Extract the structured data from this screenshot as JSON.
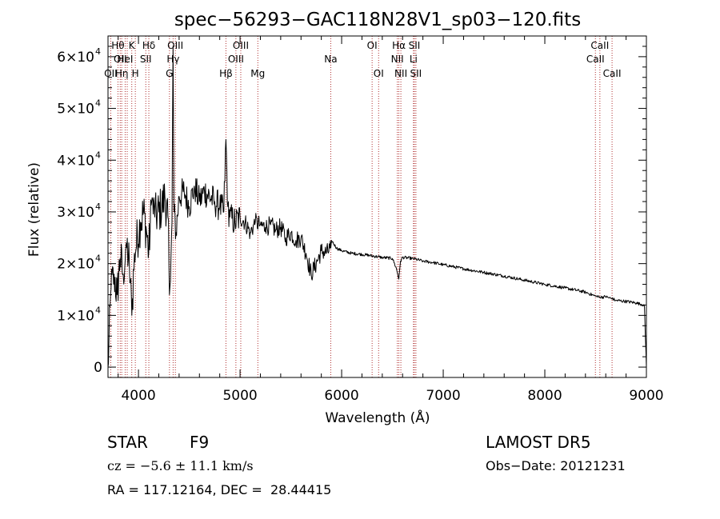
{
  "chart_data": {
    "type": "line",
    "title": "spec−56293−GAC118N28V1_sp03−120.fits",
    "xlabel": "Wavelength (Å)",
    "ylabel": "Flux (relative)",
    "xlim": [
      3700,
      9000
    ],
    "ylim": [
      -2000,
      64000
    ],
    "x_ticks": [
      4000,
      5000,
      6000,
      7000,
      8000,
      9000
    ],
    "y_ticks": [
      {
        "value": 0,
        "label": "0"
      },
      {
        "value": 10000,
        "label": "1×10",
        "exp": "4"
      },
      {
        "value": 20000,
        "label": "2×10",
        "exp": "4"
      },
      {
        "value": 30000,
        "label": "3×10",
        "exp": "4"
      },
      {
        "value": 40000,
        "label": "4×10",
        "exp": "4"
      },
      {
        "value": 50000,
        "label": "5×10",
        "exp": "4"
      },
      {
        "value": 60000,
        "label": "6×10",
        "exp": "4"
      }
    ],
    "grid": false,
    "series": [
      {
        "x": [
          3700,
          3730,
          3760,
          3790,
          3820,
          3850,
          3880,
          3910,
          3935,
          3960,
          3990,
          4020,
          4050,
          4080,
          4101,
          4130,
          4160,
          4200,
          4230,
          4260,
          4290,
          4305,
          4330,
          4340,
          4350,
          4370,
          4400,
          4450,
          4500,
          4550,
          4600,
          4650,
          4700,
          4750,
          4800,
          4840,
          4861,
          4880,
          4900,
          4950,
          5000,
          5050,
          5100,
          5150,
          5200,
          5250,
          5300,
          5350,
          5400,
          5450,
          5500,
          5550,
          5600,
          5650,
          5700,
          5750,
          5800,
          5850,
          5893,
          5900,
          5950,
          6000,
          6100,
          6200,
          6300,
          6400,
          6500,
          6540,
          6563,
          6580,
          6600,
          6700,
          6800,
          6900,
          7000,
          7200,
          7400,
          7600,
          7800,
          8000,
          8200,
          8400,
          8498,
          8542,
          8600,
          8662,
          8700,
          8800,
          8900,
          8980,
          9000
        ],
        "y": [
          0,
          15000,
          18000,
          14000,
          21000,
          18000,
          24000,
          20000,
          10000,
          22000,
          25000,
          28000,
          30000,
          26000,
          22000,
          32000,
          29000,
          30000,
          31000,
          33000,
          29000,
          14000,
          28000,
          62000,
          30000,
          26000,
          33000,
          34000,
          31000,
          35000,
          32000,
          34000,
          33000,
          32000,
          31000,
          30000,
          44000,
          31000,
          29000,
          28000,
          29000,
          28000,
          26000,
          28000,
          27500,
          27000,
          27500,
          26500,
          27000,
          25000,
          26000,
          24500,
          25000,
          22000,
          18000,
          20000,
          22500,
          22000,
          23000,
          24500,
          23000,
          22500,
          22000,
          21800,
          21500,
          21200,
          21000,
          19000,
          17000,
          20500,
          21200,
          21000,
          20500,
          20200,
          19800,
          19000,
          18300,
          17600,
          16800,
          16000,
          15300,
          14500,
          13700,
          13500,
          13600,
          13200,
          12900,
          12700,
          12400,
          12000,
          0
        ]
      }
    ],
    "lines": [
      {
        "wl": 3727,
        "labels": [
          "OII"
        ],
        "row": 2
      },
      {
        "wl": 3798,
        "labels": [
          "Hθ"
        ],
        "row": 0
      },
      {
        "wl": 3820,
        "labels": [
          "OII"
        ],
        "row": 1
      },
      {
        "wl": 3835,
        "labels": [
          "Hη"
        ],
        "row": 2
      },
      {
        "wl": 3869,
        "labels": [
          "HeI"
        ],
        "row": 1
      },
      {
        "wl": 3889,
        "labels": [],
        "row": 0
      },
      {
        "wl": 3934,
        "labels": [
          "K"
        ],
        "row": 0
      },
      {
        "wl": 3969,
        "labels": [
          "H"
        ],
        "row": 2
      },
      {
        "wl": 4072,
        "labels": [
          "SII"
        ],
        "row": 1
      },
      {
        "wl": 4102,
        "labels": [
          "Hδ"
        ],
        "row": 0
      },
      {
        "wl": 4305,
        "labels": [
          "G"
        ],
        "row": 2
      },
      {
        "wl": 4341,
        "labels": [
          "Hγ"
        ],
        "row": 1
      },
      {
        "wl": 4363,
        "labels": [
          "OIII"
        ],
        "row": 0
      },
      {
        "wl": 4861,
        "labels": [
          "Hβ"
        ],
        "row": 2
      },
      {
        "wl": 4959,
        "labels": [
          "OIII"
        ],
        "row": 1
      },
      {
        "wl": 5007,
        "labels": [
          "OIII"
        ],
        "row": 0
      },
      {
        "wl": 5175,
        "labels": [
          "Mg"
        ],
        "row": 2
      },
      {
        "wl": 5893,
        "labels": [
          "Na"
        ],
        "row": 1
      },
      {
        "wl": 6300,
        "labels": [
          "OI"
        ],
        "row": 0
      },
      {
        "wl": 6364,
        "labels": [
          "OI"
        ],
        "row": 2
      },
      {
        "wl": 6548,
        "labels": [
          "NII"
        ],
        "row": 1
      },
      {
        "wl": 6563,
        "labels": [
          "Hα"
        ],
        "row": 0
      },
      {
        "wl": 6583,
        "labels": [
          "NII"
        ],
        "row": 2
      },
      {
        "wl": 6707,
        "labels": [
          "Li"
        ],
        "row": 1
      },
      {
        "wl": 6716,
        "labels": [
          "SII"
        ],
        "row": 0
      },
      {
        "wl": 6731,
        "labels": [
          "SII"
        ],
        "row": 2
      },
      {
        "wl": 8498,
        "labels": [
          "CaII"
        ],
        "row": 1
      },
      {
        "wl": 8542,
        "labels": [
          "CaII"
        ],
        "row": 0
      },
      {
        "wl": 8662,
        "labels": [
          "CaII"
        ],
        "row": 2
      }
    ]
  },
  "info": {
    "class": "STAR",
    "subclass": "F9",
    "survey": "LAMOST DR5",
    "cz": "cz = −5.6 ± 11.1 km/s",
    "obs_date": "Obs−Date: 20121231",
    "radec": "RA = 117.12164, DEC =  28.44415"
  }
}
